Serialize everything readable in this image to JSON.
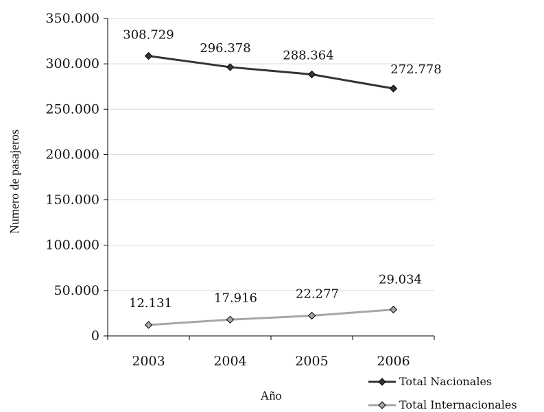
{
  "chart_data": {
    "type": "line",
    "categories": [
      "2003",
      "2004",
      "2005",
      "2006"
    ],
    "series": [
      {
        "name": "Total Nacionales",
        "values": [
          308729,
          296378,
          288364,
          272778
        ],
        "labels": [
          "308.729",
          "296.378",
          "288.364",
          "272.778"
        ],
        "color": "#333333",
        "marker": "diamond"
      },
      {
        "name": "Total Internacionales",
        "values": [
          12131,
          17916,
          22277,
          29034
        ],
        "labels": [
          "12.131",
          "17.916",
          "22.277",
          "29.034"
        ],
        "color": "#a6a6a6",
        "marker": "diamond"
      }
    ],
    "xlabel": "Año",
    "ylabel": "Numero de pasajeros",
    "ylim": [
      0,
      350000
    ],
    "yticks": [
      0,
      50000,
      100000,
      150000,
      200000,
      250000,
      300000,
      350000
    ],
    "ytick_labels": [
      "0",
      "50.000",
      "100.000",
      "150.000",
      "200.000",
      "250.000",
      "300.000",
      "350.000"
    ],
    "grid": "horizontal",
    "legend": "bottom-right"
  }
}
